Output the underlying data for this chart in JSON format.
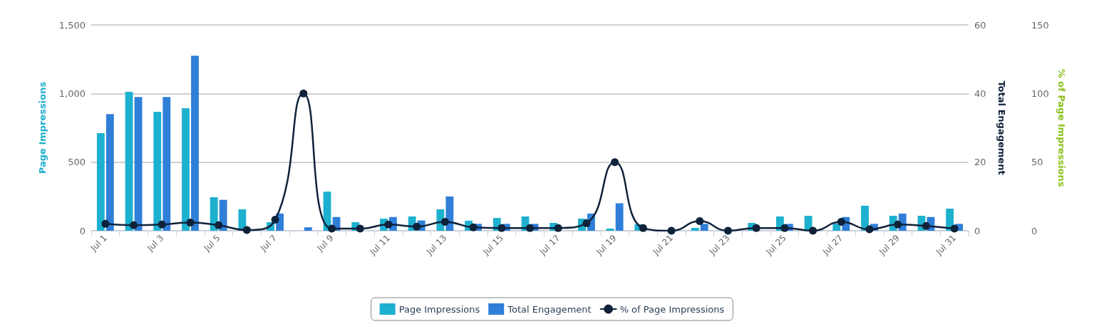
{
  "chart_data": {
    "type": "bar",
    "categories": [
      "Jul 1",
      null,
      "Jul 3",
      null,
      "Jul 5",
      null,
      "Jul 7",
      null,
      "Jul 9",
      null,
      "Jul 11",
      null,
      "Jul 13",
      null,
      "Jul 15",
      null,
      "Jul 17",
      null,
      "Jul 19",
      null,
      "Jul 21",
      null,
      "Jul 23",
      null,
      "Jul 25",
      null,
      "Jul 27",
      null,
      "Jul 29",
      null,
      "Jul 31"
    ],
    "series": [
      {
        "name": "Page Impressions",
        "color": "#1eb0cf",
        "values": [
          711,
          1012,
          867,
          893,
          244,
          156,
          62,
          0,
          285,
          62,
          88,
          104,
          156,
          73,
          93,
          104,
          57,
          88,
          16,
          47,
          null,
          21,
          0,
          57,
          104,
          109,
          52,
          182,
          109,
          109,
          161
        ]
      },
      {
        "name": "Total Engagement",
        "axis": "y2",
        "color": "#2f7fd9",
        "values": [
          34,
          39,
          39,
          51,
          9,
          null,
          5,
          1,
          4,
          0,
          4,
          3,
          10,
          2,
          2,
          2,
          null,
          5,
          8,
          0,
          0,
          2,
          0,
          null,
          2,
          0,
          4,
          2,
          5,
          4,
          2
        ]
      },
      {
        "name": "% of Page Impressions",
        "type": "line",
        "axis": "y3",
        "color": "#0f223a",
        "values": [
          5,
          4,
          4.5,
          6,
          4,
          0.5,
          8,
          100,
          1.5,
          1.5,
          4.5,
          3,
          6.5,
          2.5,
          2,
          2,
          2,
          5.5,
          50,
          2,
          0,
          7,
          0,
          2,
          2,
          0,
          6.5,
          1,
          4.5,
          3.5,
          1.5
        ]
      }
    ],
    "ylabel": "Page Impressions",
    "y2label": "Total Engagement",
    "y3label": "% of Page Impressions",
    "ylim": [
      0,
      1500
    ],
    "yticks": [
      0,
      500,
      {
        "value": 1000,
        "label": "1,000"
      },
      {
        "value": 1500,
        "label": "1,500"
      }
    ],
    "y2lim": [
      0,
      60
    ],
    "y2ticks": [
      0,
      20,
      40,
      60
    ],
    "y3lim": [
      0,
      150
    ],
    "y3ticks": [
      0,
      50,
      100,
      150
    ],
    "grid": "y",
    "legend": "bottom",
    "marker": "circle",
    "line_style": "solid"
  }
}
